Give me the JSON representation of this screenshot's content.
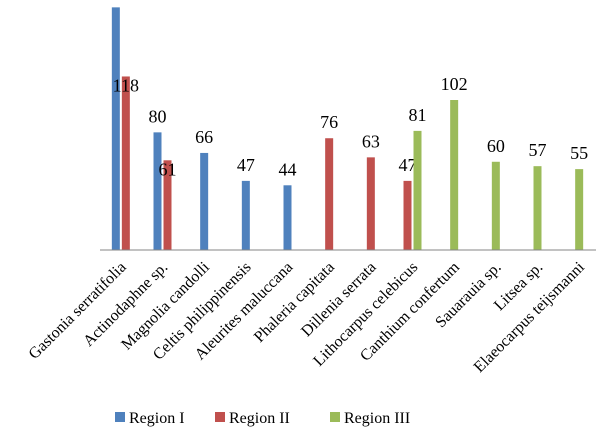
{
  "chart_data": {
    "type": "bar",
    "categories": [
      "Gastonia serratifolia",
      "Actinodaphne sp.",
      "Magnolia candolli",
      "Celtis philippinensis",
      "Aleurites maluccana",
      "Phaleria capitata",
      "Dillenia serrata",
      "Lithocarpus celebicus",
      "Canthium confertum",
      "Sauarauia sp.",
      "Litsea sp.",
      "Elaeocarpus teijsmanni"
    ],
    "series": [
      {
        "name": "Region I",
        "color": "#4F81BD",
        "values": [
          165,
          80,
          66,
          47,
          44,
          null,
          null,
          null,
          null,
          null,
          null,
          null
        ]
      },
      {
        "name": "Region II",
        "color": "#C0504D",
        "values": [
          118,
          61,
          null,
          null,
          null,
          76,
          63,
          47,
          null,
          null,
          null,
          null
        ]
      },
      {
        "name": "Region III",
        "color": "#9BBB59",
        "values": [
          null,
          null,
          null,
          null,
          null,
          null,
          null,
          81,
          102,
          60,
          57,
          55
        ]
      }
    ],
    "ylim": [
      0,
      170
    ],
    "grid": false,
    "legend_position": "bottom"
  }
}
